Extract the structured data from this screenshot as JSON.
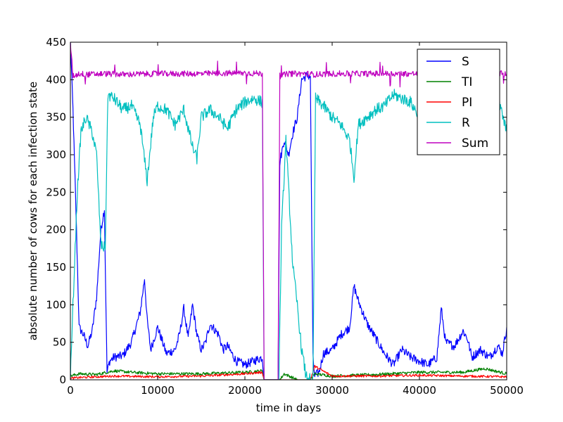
{
  "chart_data": {
    "type": "line",
    "title": "",
    "xlabel": "time in days",
    "ylabel": "absolute number of cows for each infection state",
    "xlim": [
      0,
      50000
    ],
    "ylim": [
      0,
      450
    ],
    "x_ticks": [
      0,
      10000,
      20000,
      30000,
      40000,
      50000
    ],
    "x_tick_labels": [
      "0",
      "10000",
      "20000",
      "30000",
      "40000",
      "50000"
    ],
    "y_ticks": [
      0,
      50,
      100,
      150,
      200,
      250,
      300,
      350,
      400,
      450
    ],
    "y_tick_labels": [
      "0",
      "50",
      "100",
      "150",
      "200",
      "250",
      "300",
      "350",
      "400",
      "450"
    ],
    "grid": false,
    "legend_position": "top-right",
    "series": [
      {
        "name": "S",
        "color": "#0000ff",
        "x": [
          0,
          300,
          700,
          1000,
          1500,
          2000,
          2500,
          3000,
          3500,
          3900,
          4200,
          4500,
          5000,
          6000,
          7000,
          8000,
          8500,
          8800,
          9200,
          10000,
          11000,
          12000,
          12500,
          13000,
          13500,
          14000,
          14500,
          15000,
          15500,
          16000,
          17000,
          17500,
          18000,
          19000,
          20000,
          21000,
          22000,
          22200,
          22400,
          22700,
          23000,
          23500,
          23800,
          24000,
          24500,
          25000,
          25500,
          26000,
          26500,
          27000,
          27500,
          27800,
          28000,
          28500,
          29000,
          30000,
          31000,
          32000,
          32500,
          33000,
          34000,
          35000,
          36000,
          37000,
          38000,
          39000,
          40000,
          41000,
          42000,
          42500,
          43000,
          44000,
          45000,
          45500,
          46000,
          47000,
          48000,
          49000,
          49500,
          50000
        ],
        "values": [
          450,
          360,
          200,
          70,
          60,
          45,
          65,
          110,
          200,
          228,
          10,
          25,
          30,
          32,
          50,
          90,
          135,
          80,
          40,
          70,
          35,
          40,
          60,
          95,
          55,
          100,
          60,
          40,
          50,
          75,
          60,
          40,
          45,
          25,
          20,
          25,
          30,
          0,
          0,
          0,
          0,
          0,
          0,
          290,
          320,
          300,
          330,
          350,
          400,
          405,
          405,
          30,
          5,
          10,
          35,
          40,
          60,
          70,
          125,
          105,
          75,
          55,
          35,
          20,
          40,
          30,
          25,
          20,
          30,
          95,
          50,
          45,
          65,
          55,
          30,
          40,
          30,
          45,
          35,
          70
        ]
      },
      {
        "name": "TI",
        "color": "#008000",
        "x": [
          0,
          1000,
          3000,
          5000,
          7000,
          10000,
          15000,
          20000,
          22000,
          22200,
          24000,
          24500,
          26000,
          27500,
          28000,
          30000,
          35000,
          40000,
          45000,
          47500,
          50000
        ],
        "values": [
          5,
          8,
          7,
          12,
          10,
          8,
          8,
          10,
          12,
          0,
          0,
          8,
          0,
          0,
          8,
          5,
          7,
          10,
          10,
          15,
          8
        ]
      },
      {
        "name": "PI",
        "color": "#ff0000",
        "x": [
          0,
          1000,
          5000,
          10000,
          15000,
          20000,
          22000,
          22200,
          24000,
          27500,
          28000,
          30000,
          35000,
          40000,
          45000,
          50000
        ],
        "values": [
          2,
          3,
          5,
          4,
          5,
          8,
          10,
          0,
          0,
          0,
          18,
          5,
          5,
          6,
          5,
          4
        ]
      },
      {
        "name": "R",
        "color": "#00bfbf",
        "x": [
          0,
          300,
          800,
          1200,
          1800,
          2500,
          3000,
          3500,
          4000,
          4300,
          5000,
          6000,
          7000,
          8000,
          8800,
          9500,
          10000,
          11000,
          12000,
          13000,
          14000,
          14500,
          15000,
          16000,
          17000,
          18000,
          19000,
          20000,
          21000,
          22000,
          22200,
          22500,
          23000,
          23500,
          23900,
          24200,
          24700,
          25500,
          26000,
          26500,
          27000,
          27500,
          27800,
          28100,
          29000,
          30000,
          31000,
          32000,
          32500,
          33000,
          34000,
          35000,
          36000,
          37000,
          38000,
          39000,
          40000,
          41000,
          42000,
          43000,
          44000,
          45000,
          46000,
          47000,
          48000,
          49000,
          50000
        ],
        "values": [
          0,
          100,
          250,
          330,
          350,
          330,
          300,
          180,
          175,
          380,
          375,
          360,
          365,
          340,
          265,
          350,
          365,
          360,
          340,
          360,
          310,
          295,
          350,
          360,
          350,
          335,
          360,
          370,
          375,
          370,
          0,
          0,
          0,
          0,
          0,
          200,
          320,
          150,
          100,
          40,
          5,
          0,
          0,
          375,
          365,
          350,
          340,
          320,
          270,
          340,
          350,
          360,
          365,
          380,
          375,
          370,
          350,
          380,
          360,
          375,
          370,
          365,
          375,
          370,
          380,
          375,
          330
        ]
      },
      {
        "name": "Sum",
        "color": "#bf00bf",
        "x": [
          0,
          300,
          1000,
          2000,
          4000,
          6000,
          10000,
          15000,
          20000,
          22000,
          22200,
          22500,
          23000,
          23800,
          24000,
          25000,
          27000,
          28000,
          30000,
          35000,
          40000,
          45000,
          50000
        ],
        "values": [
          450,
          405,
          408,
          407,
          408,
          407,
          408,
          408,
          409,
          408,
          0,
          0,
          0,
          0,
          405,
          408,
          408,
          407,
          408,
          408,
          408,
          408,
          408
        ]
      }
    ]
  }
}
